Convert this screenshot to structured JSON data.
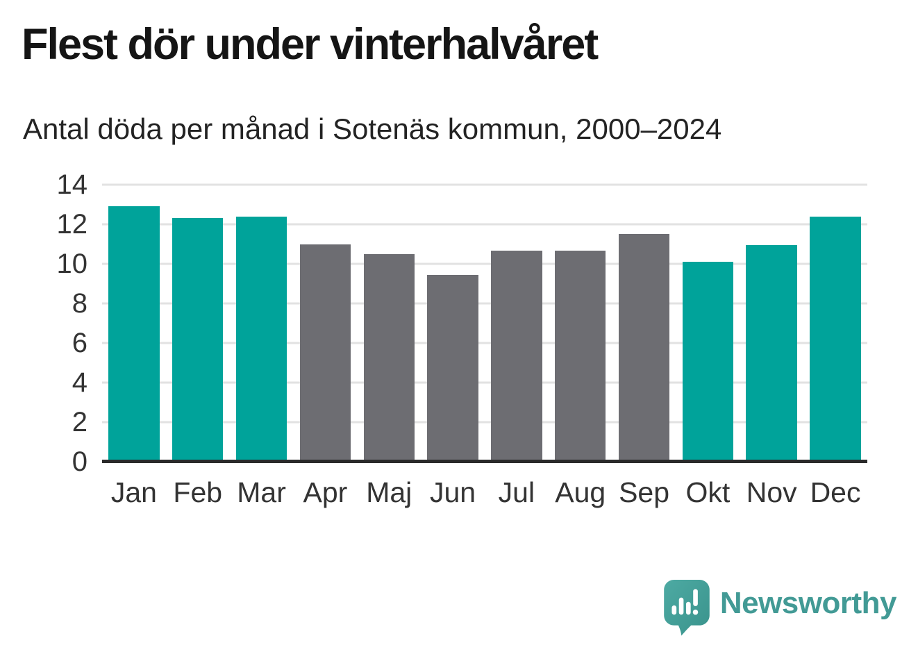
{
  "title": "Flest dör under vinterhalvåret",
  "subtitle": "Antal döda per månad i Sotenäs kommun, 2000–2024",
  "chart_data": {
    "type": "bar",
    "categories": [
      "Jan",
      "Feb",
      "Mar",
      "Apr",
      "Maj",
      "Jun",
      "Jul",
      "Aug",
      "Sep",
      "Okt",
      "Nov",
      "Dec"
    ],
    "values": [
      12.9,
      12.3,
      12.4,
      11.0,
      10.5,
      9.45,
      10.65,
      10.65,
      11.5,
      10.1,
      10.95,
      12.4
    ],
    "bar_palette": [
      "highlight",
      "highlight",
      "highlight",
      "muted",
      "muted",
      "muted",
      "muted",
      "muted",
      "muted",
      "highlight",
      "highlight",
      "highlight"
    ],
    "title": "Flest dör under vinterhalvåret",
    "subtitle": "Antal döda per månad i Sotenäs kommun, 2000–2024",
    "xlabel": "",
    "ylabel": "",
    "ylim": [
      0,
      14
    ],
    "yticks": [
      0,
      2,
      4,
      6,
      8,
      10,
      12,
      14
    ],
    "grid": true,
    "legend": false,
    "colors": {
      "highlight": "#00a39a",
      "muted": "#6d6d72",
      "gridline": "#e2e2e2",
      "axis_line": "#2a2a2a",
      "axis_text": "#333333"
    }
  },
  "branding": {
    "logo_text": "Newsworthy",
    "logo_text_color": "#429a95",
    "logo_bubble_color": "#45a19a",
    "logo_icon": "newsworthy-speech-bubble-chart-icon"
  }
}
